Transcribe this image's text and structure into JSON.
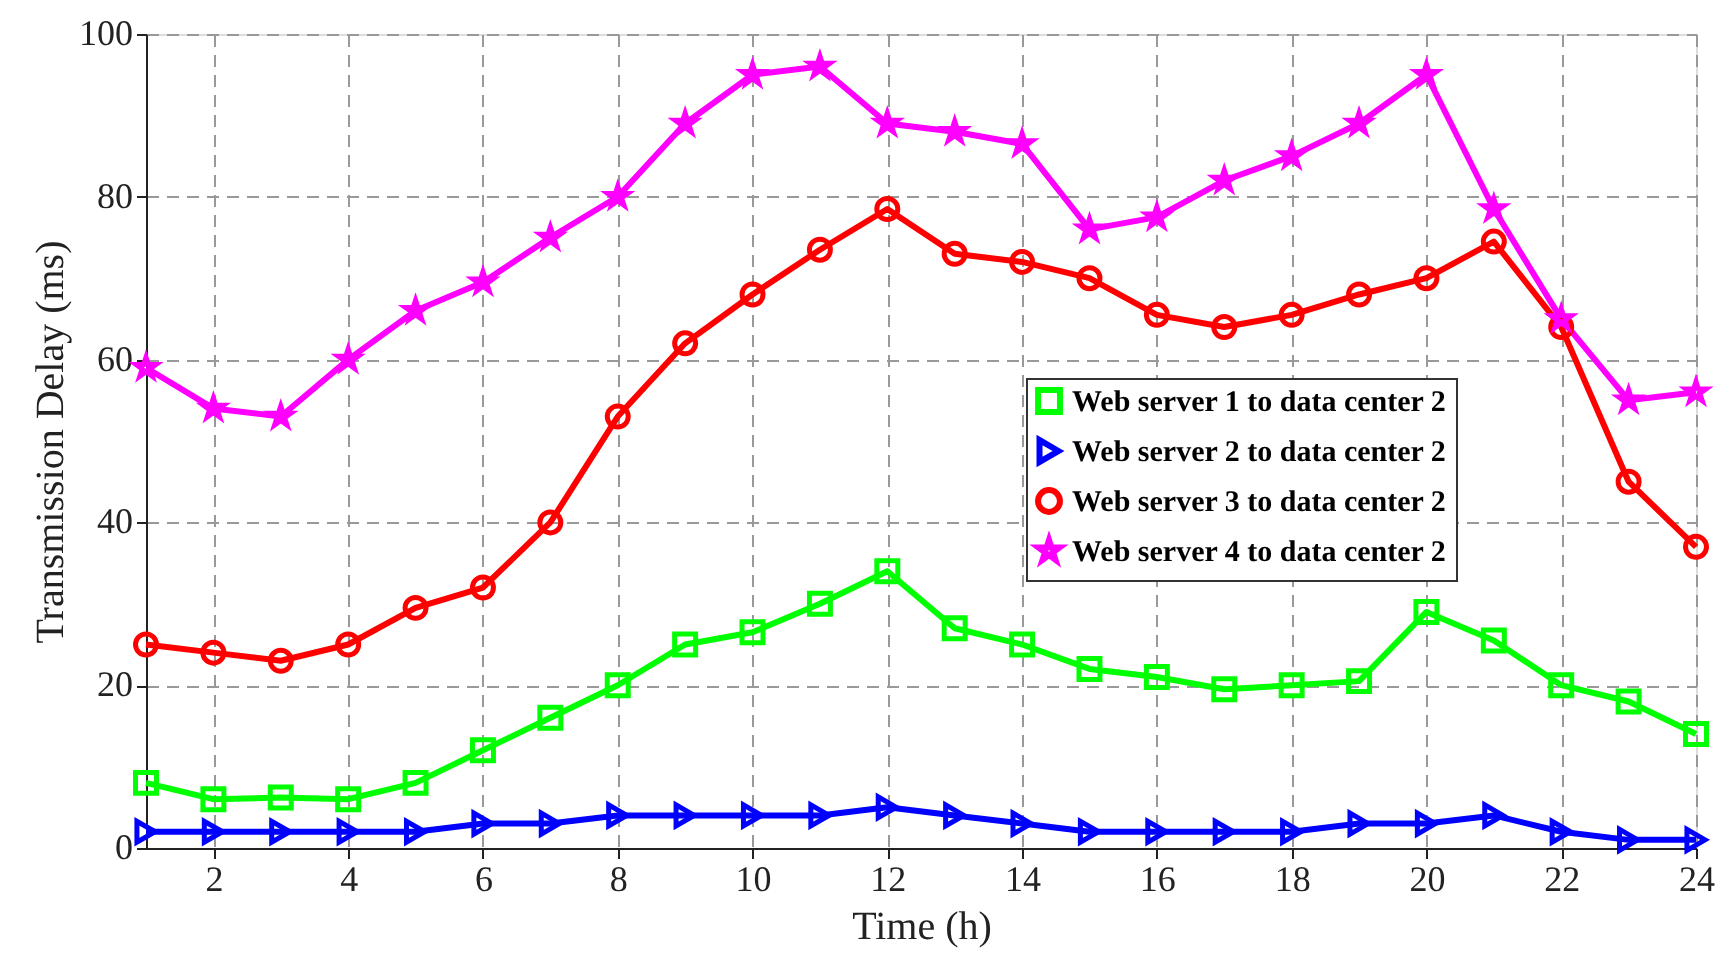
{
  "chart_data": {
    "type": "line",
    "xlabel": "Time (h)",
    "ylabel": "Transmission Delay (ms)",
    "x": [
      1,
      2,
      3,
      4,
      5,
      6,
      7,
      8,
      9,
      10,
      11,
      12,
      13,
      14,
      15,
      16,
      17,
      18,
      19,
      20,
      21,
      22,
      23,
      24
    ],
    "xlim": [
      1,
      24
    ],
    "xticks": [
      2,
      4,
      6,
      8,
      10,
      12,
      14,
      16,
      18,
      20,
      22,
      24
    ],
    "ylim": [
      0,
      100
    ],
    "yticks": [
      0,
      20,
      40,
      60,
      80,
      100
    ],
    "grid": true,
    "legend": "right",
    "line_style": "solid",
    "series": [
      {
        "name": "Web server 1 to data center 2",
        "color": "#00ff00",
        "marker": "square",
        "values": [
          8,
          6,
          6.2,
          6,
          8,
          12,
          16,
          20,
          25,
          26.5,
          30,
          34,
          27,
          25,
          22,
          21,
          19.5,
          20,
          20.5,
          29,
          25.5,
          20,
          18,
          14
        ]
      },
      {
        "name": "Web server 2 to data center 2",
        "color": "#0000ff",
        "marker": "triangle",
        "values": [
          2,
          2,
          2,
          2,
          2,
          3,
          3,
          4,
          4,
          4,
          4,
          5,
          4,
          3,
          2,
          2,
          2,
          2,
          3,
          3,
          4,
          2,
          1,
          1
        ]
      },
      {
        "name": "Web server 3 to data center 2",
        "color": "#ff0000",
        "marker": "circle",
        "values": [
          25,
          24,
          23,
          25,
          29.5,
          32,
          40,
          53,
          62,
          68,
          73.5,
          78.5,
          73,
          72,
          70,
          65.5,
          64,
          65.5,
          68,
          70,
          74.5,
          64,
          45,
          37
        ]
      },
      {
        "name": "Web server 4 to data center 2",
        "color": "#ff00ff",
        "marker": "star",
        "values": [
          59,
          54,
          53,
          60,
          66,
          69.5,
          75,
          80,
          89,
          95,
          96,
          89,
          88,
          86.5,
          76,
          77.5,
          82,
          85,
          89,
          95,
          78.5,
          65,
          55,
          56
        ]
      }
    ]
  }
}
